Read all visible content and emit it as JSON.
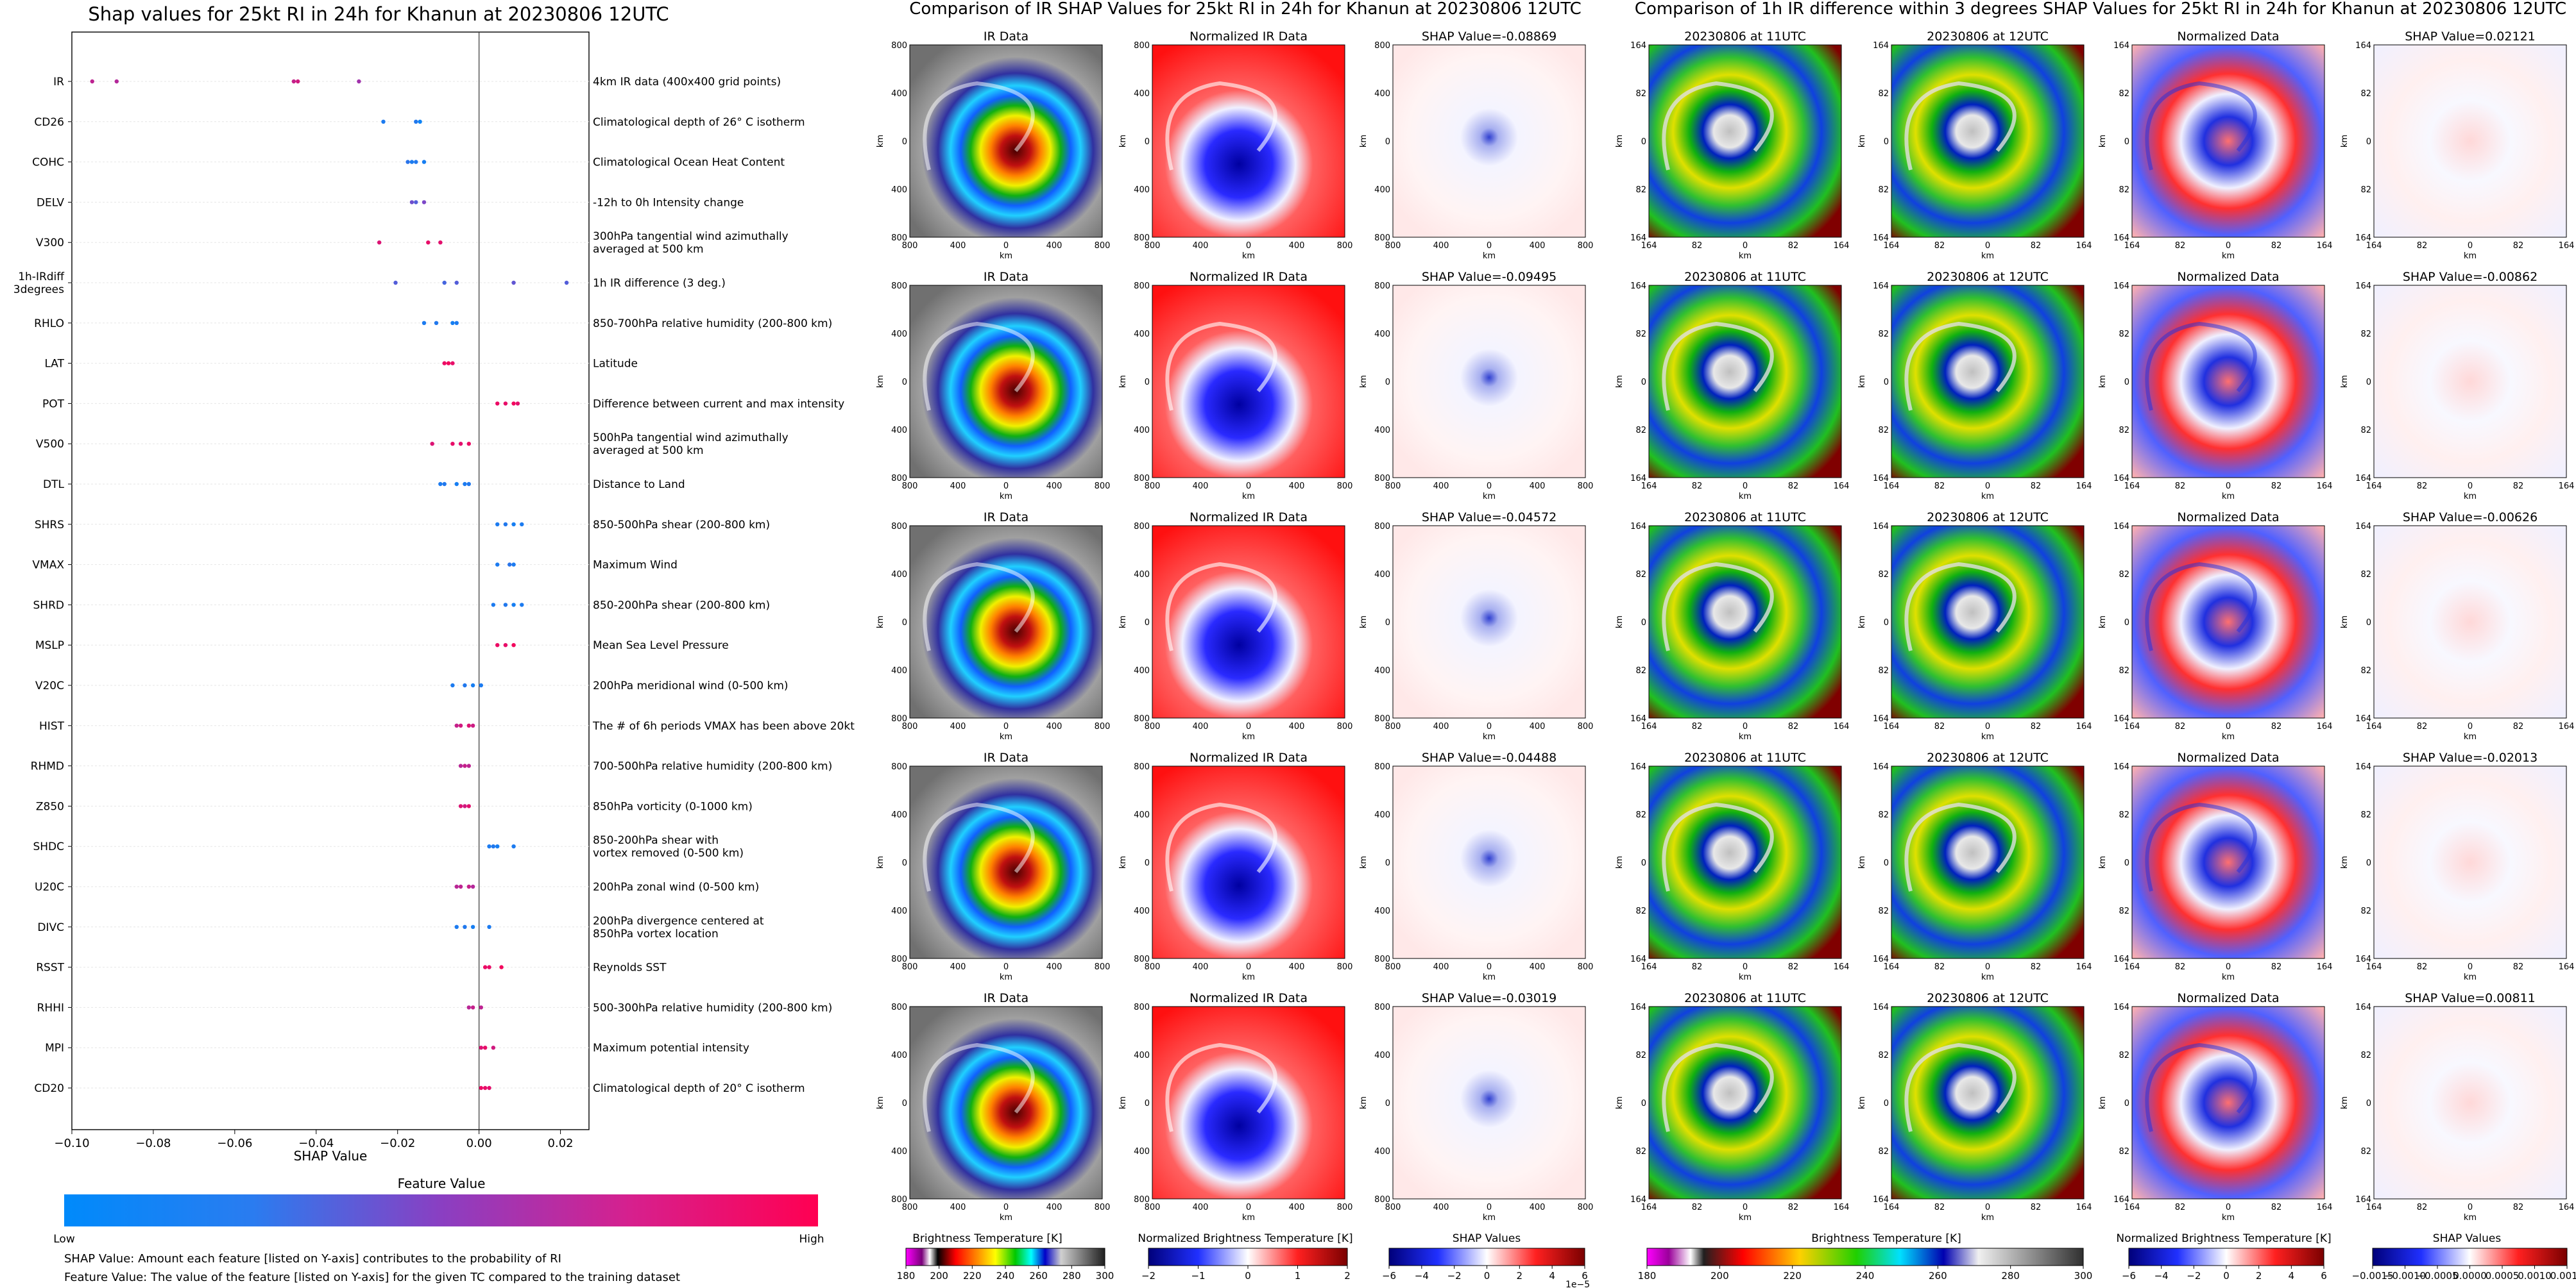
{
  "left_panel": {
    "title": "Shap values for 25kt RI in 24h for Khanun at 20230806 12UTC",
    "xlabel": "SHAP Value",
    "colorbar_title": "Feature Value",
    "colorbar_low": "Low",
    "colorbar_high": "High",
    "note_1": "SHAP Value: Amount each feature [listed on Y-axis] contributes to the probability of RI",
    "note_2": "Feature Value: The value of the feature [listed on Y-axis] for the given TC compared to the training dataset"
  },
  "middle_panel": {
    "title": "Comparison of IR SHAP Values for 25kt RI in 24h for Khanun at 20230806 12UTC",
    "col_titles": [
      "IR Data",
      "Normalized IR Data"
    ],
    "shap_titles": [
      "SHAP Value=-0.08869",
      "SHAP Value=-0.09495",
      "SHAP Value=-0.04572",
      "SHAP Value=-0.04488",
      "SHAP Value=-0.03019"
    ],
    "axis_label": "km",
    "ticks": [
      "800",
      "400",
      "0",
      "400",
      "800"
    ],
    "cbar_labels": [
      "Brightness Temperature [K]",
      "Normalized Brightness Temperature [K]",
      "SHAP Values"
    ],
    "cbar_ticks_bt": [
      "180",
      "200",
      "220",
      "240",
      "260",
      "280",
      "300"
    ],
    "cbar_ticks_norm": [
      "−2",
      "−1",
      "0",
      "1",
      "2"
    ],
    "cbar_ticks_shap": [
      "−6",
      "−4",
      "−2",
      "0",
      "2",
      "4",
      "6"
    ],
    "cbar_exp": "1e−5"
  },
  "right_panel": {
    "title": "Comparison of 1h IR difference within 3 degrees SHAP Values for 25kt RI in 24h for Khanun at 20230806 12UTC",
    "col_titles": [
      "20230806 at 11UTC",
      "20230806 at 12UTC",
      "Normalized Data"
    ],
    "shap_titles": [
      "SHAP Value=0.02121",
      "SHAP Value=-0.00862",
      "SHAP Value=-0.00626",
      "SHAP Value=-0.02013",
      "SHAP Value=0.00811"
    ],
    "axis_label": "km",
    "ticks": [
      "164",
      "82",
      "0",
      "82",
      "164"
    ],
    "cbar_labels": [
      "Brightness Temperature [K]",
      "Normalized Brightness Temperature [K]",
      "SHAP Values"
    ],
    "cbar_ticks_bt": [
      "180",
      "200",
      "220",
      "240",
      "260",
      "280",
      "300"
    ],
    "cbar_ticks_norm": [
      "−6",
      "−4",
      "−2",
      "0",
      "2",
      "4",
      "6"
    ],
    "cbar_ticks_shap": [
      "−0.0015",
      "−0.0010",
      "−0.0005",
      "0.0000",
      "0.0005",
      "0.0010",
      "0.0015"
    ]
  },
  "chart_data": [
    {
      "type": "scatter",
      "title": "Shap values for 25kt RI in 24h for Khanun at 20230806 12UTC",
      "xlabel": "SHAP Value",
      "xlim": [
        -0.1,
        0.027
      ],
      "xticks": [
        -0.1,
        -0.08,
        -0.06,
        -0.04,
        -0.02,
        0.0,
        0.02
      ],
      "xtick_labels": [
        "−0.10",
        "−0.08",
        "−0.06",
        "−0.04",
        "−0.02",
        "0.00",
        "0.02"
      ],
      "color_low": "#008afb",
      "color_high": "#ff0052",
      "features": [
        {
          "name": "IR",
          "desc": "4km IR data (400x400 grid points)",
          "points": [
            [
              -0.095,
              0.72
            ],
            [
              -0.089,
              0.68
            ],
            [
              -0.0455,
              0.75
            ],
            [
              -0.0445,
              0.8
            ],
            [
              -0.0295,
              0.6
            ]
          ]
        },
        {
          "name": "CD26",
          "desc": "Climatological depth of 26° C isotherm",
          "points": [
            [
              -0.0235,
              0.1
            ],
            [
              -0.0155,
              0.12
            ],
            [
              -0.0145,
              0.05
            ]
          ]
        },
        {
          "name": "COHC",
          "desc": "Climatological Ocean Heat Content",
          "points": [
            [
              -0.0175,
              0.15
            ],
            [
              -0.0165,
              0.1
            ],
            [
              -0.0155,
              0.12
            ],
            [
              -0.0135,
              0.08
            ]
          ]
        },
        {
          "name": "DELV",
          "desc": "-12h to 0h Intensity change",
          "points": [
            [
              -0.0165,
              0.4
            ],
            [
              -0.0155,
              0.3
            ],
            [
              -0.0135,
              0.45
            ]
          ]
        },
        {
          "name": "V300",
          "desc": "300hPa tangential wind azimuthally\naveraged at 500 km",
          "points": [
            [
              -0.0245,
              0.85
            ],
            [
              -0.0125,
              0.9
            ],
            [
              -0.0095,
              0.88
            ]
          ]
        },
        {
          "name": "1h-IRdiff\n3degrees",
          "desc": "1h IR difference (3 deg.)",
          "points": [
            [
              -0.0205,
              0.3
            ],
            [
              -0.0085,
              0.25
            ],
            [
              -0.0055,
              0.3
            ],
            [
              0.0085,
              0.35
            ],
            [
              0.0215,
              0.3
            ]
          ]
        },
        {
          "name": "RHLO",
          "desc": "850-700hPa relative humidity (200-800 km)",
          "points": [
            [
              -0.0135,
              0.1
            ],
            [
              -0.0105,
              0.12
            ],
            [
              -0.0065,
              0.08
            ],
            [
              -0.0055,
              0.1
            ]
          ]
        },
        {
          "name": "LAT",
          "desc": "Latitude",
          "points": [
            [
              -0.0085,
              0.92
            ],
            [
              -0.0075,
              0.95
            ],
            [
              -0.0065,
              0.9
            ]
          ]
        },
        {
          "name": "POT",
          "desc": "Difference between current and max intensity",
          "points": [
            [
              0.0045,
              0.92
            ],
            [
              0.0065,
              0.9
            ],
            [
              0.0085,
              0.95
            ],
            [
              0.0095,
              0.88
            ]
          ]
        },
        {
          "name": "V500",
          "desc": "500hPa tangential wind azimuthally\naveraged at 500 km",
          "points": [
            [
              -0.0115,
              0.85
            ],
            [
              -0.0065,
              0.9
            ],
            [
              -0.0045,
              0.88
            ],
            [
              -0.0025,
              0.92
            ]
          ]
        },
        {
          "name": "DTL",
          "desc": "Distance to Land",
          "points": [
            [
              -0.0095,
              0.1
            ],
            [
              -0.0085,
              0.12
            ],
            [
              -0.0055,
              0.08
            ],
            [
              -0.0035,
              0.1
            ],
            [
              -0.0025,
              0.12
            ]
          ]
        },
        {
          "name": "SHRS",
          "desc": "850-500hPa shear (200-800 km)",
          "points": [
            [
              0.0045,
              0.1
            ],
            [
              0.0065,
              0.12
            ],
            [
              0.0085,
              0.08
            ],
            [
              0.0105,
              0.1
            ]
          ]
        },
        {
          "name": "VMAX",
          "desc": "Maximum Wind",
          "points": [
            [
              0.0045,
              0.1
            ],
            [
              0.0075,
              0.15
            ],
            [
              0.0085,
              0.1
            ]
          ]
        },
        {
          "name": "SHRD",
          "desc": "850-200hPa shear (200-800 km)",
          "points": [
            [
              0.0035,
              0.1
            ],
            [
              0.0065,
              0.12
            ],
            [
              0.0085,
              0.08
            ],
            [
              0.0105,
              0.1
            ]
          ]
        },
        {
          "name": "MSLP",
          "desc": "Mean Sea Level Pressure",
          "points": [
            [
              0.0045,
              0.92
            ],
            [
              0.0065,
              0.9
            ],
            [
              0.0085,
              0.95
            ]
          ]
        },
        {
          "name": "V20C",
          "desc": "200hPa meridional wind (0-500 km)",
          "points": [
            [
              -0.0065,
              0.1
            ],
            [
              -0.0035,
              0.12
            ],
            [
              -0.0015,
              0.08
            ],
            [
              0.0005,
              0.1
            ]
          ]
        },
        {
          "name": "HIST",
          "desc": "The # of 6h periods VMAX has been above 20kt",
          "points": [
            [
              -0.0055,
              0.75
            ],
            [
              -0.0045,
              0.8
            ],
            [
              -0.0025,
              0.85
            ],
            [
              -0.0015,
              0.78
            ]
          ]
        },
        {
          "name": "RHMD",
          "desc": "700-500hPa relative humidity (200-800 km)",
          "points": [
            [
              -0.0045,
              0.7
            ],
            [
              -0.0035,
              0.75
            ],
            [
              -0.0025,
              0.72
            ]
          ]
        },
        {
          "name": "Z850",
          "desc": "850hPa vorticity (0-1000 km)",
          "points": [
            [
              -0.0045,
              0.85
            ],
            [
              -0.0035,
              0.8
            ],
            [
              -0.0025,
              0.88
            ]
          ]
        },
        {
          "name": "SHDC",
          "desc": "850-200hPa shear with\nvortex removed (0-500 km)",
          "points": [
            [
              0.0025,
              0.1
            ],
            [
              0.0035,
              0.12
            ],
            [
              0.0045,
              0.08
            ],
            [
              0.0085,
              0.1
            ]
          ]
        },
        {
          "name": "U20C",
          "desc": "200hPa zonal wind (0-500 km)",
          "points": [
            [
              -0.0055,
              0.7
            ],
            [
              -0.0045,
              0.72
            ],
            [
              -0.0025,
              0.75
            ],
            [
              -0.0015,
              0.68
            ]
          ]
        },
        {
          "name": "DIVC",
          "desc": "200hPa divergence centered at\n850hPa vortex location",
          "points": [
            [
              -0.0055,
              0.1
            ],
            [
              -0.0035,
              0.12
            ],
            [
              -0.0015,
              0.08
            ],
            [
              0.0025,
              0.1
            ]
          ]
        },
        {
          "name": "RSST",
          "desc": "Reynolds SST",
          "points": [
            [
              0.0015,
              0.92
            ],
            [
              0.0025,
              0.9
            ],
            [
              0.0055,
              0.95
            ]
          ]
        },
        {
          "name": "RHHI",
          "desc": "500-300hPa relative humidity (200-800 km)",
          "points": [
            [
              -0.0025,
              0.7
            ],
            [
              -0.0015,
              0.75
            ],
            [
              0.0005,
              0.72
            ]
          ]
        },
        {
          "name": "MPI",
          "desc": "Maximum potential intensity",
          "points": [
            [
              0.0005,
              0.85
            ],
            [
              0.0015,
              0.9
            ],
            [
              0.0035,
              0.8
            ]
          ]
        },
        {
          "name": "CD20",
          "desc": "Climatological depth of 20° C isotherm",
          "points": [
            [
              0.0005,
              0.92
            ],
            [
              0.0015,
              0.9
            ],
            [
              0.0025,
              0.88
            ]
          ]
        }
      ]
    }
  ]
}
